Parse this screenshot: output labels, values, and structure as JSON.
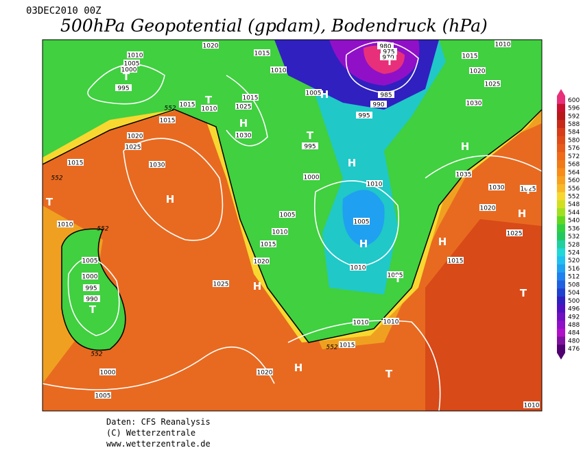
{
  "header": {
    "date": "03DEC2010 00Z",
    "title": "500hPa Geopotential (gpdam), Bodendruck (hPa)"
  },
  "legend": {
    "labels": [
      600,
      596,
      592,
      588,
      584,
      580,
      576,
      572,
      568,
      564,
      560,
      556,
      552,
      548,
      544,
      540,
      536,
      532,
      528,
      524,
      520,
      516,
      512,
      508,
      504,
      500,
      496,
      492,
      488,
      484,
      480,
      476
    ],
    "colors": [
      "#e8307a",
      "#c8102e",
      "#b81818",
      "#c82a1a",
      "#d83c18",
      "#e04c18",
      "#e85a18",
      "#f06a18",
      "#f07a18",
      "#f88c18",
      "#f8a020",
      "#f8b828",
      "#f8d830",
      "#d0e020",
      "#a0e020",
      "#60d820",
      "#30d040",
      "#20c860",
      "#20d0a0",
      "#20d8d8",
      "#20c0f0",
      "#20a0f0",
      "#2080f0",
      "#2060e0",
      "#2040d0",
      "#3020c0",
      "#5010c0",
      "#7010c0",
      "#9010c8",
      "#b010c8",
      "#8010a0",
      "#500070"
    ]
  },
  "map": {
    "isobar_labels": [
      1010,
      1005,
      1000,
      995,
      1020,
      1015,
      1010,
      980,
      975,
      970,
      1015,
      1010,
      1020,
      1025,
      1030,
      1005,
      985,
      990,
      995,
      1015,
      1025,
      1030,
      995,
      552,
      1015,
      1010,
      1015,
      1020,
      1025,
      1030,
      1015,
      552,
      1010,
      552,
      1000,
      1010,
      1035,
      1030,
      1025,
      1020,
      1025,
      1005,
      1005,
      1010,
      1015,
      1020,
      1025,
      1005,
      1000,
      995,
      990,
      552,
      1015,
      1010,
      1005,
      1010,
      1010,
      552,
      1015,
      1000,
      1020,
      1005,
      1010
    ],
    "highs": [
      "H",
      "H",
      "H",
      "H",
      "H",
      "H",
      "H",
      "H",
      "H",
      "H"
    ],
    "lows": [
      "T",
      "T",
      "T",
      "T",
      "T",
      "T",
      "T",
      "T",
      "T",
      "T"
    ]
  },
  "footer": {
    "lines": [
      "Daten: CFS Reanalysis",
      "(C) Wetterzentrale",
      "www.wetterzentrale.de"
    ]
  }
}
